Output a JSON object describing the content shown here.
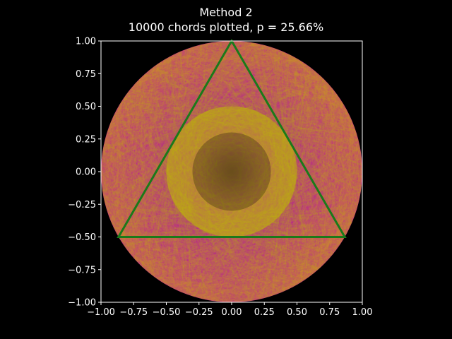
{
  "chart_data": {
    "type": "scatter",
    "title_line1": "Method 2",
    "title_line2": "10000 chords plotted, p = 25.66%",
    "n_chords": 10000,
    "p_percent": 25.66,
    "xlim": [
      -1.0,
      1.0
    ],
    "ylim": [
      -1.0,
      1.0
    ],
    "xticks": [
      -1.0,
      -0.75,
      -0.5,
      -0.25,
      0.0,
      0.25,
      0.5,
      0.75,
      1.0
    ],
    "yticks": [
      -1.0,
      -0.75,
      -0.5,
      -0.25,
      0.0,
      0.25,
      0.5,
      0.75,
      1.0
    ],
    "xtick_labels": [
      "−1.00",
      "−0.75",
      "−0.50",
      "−0.25",
      "0.00",
      "0.25",
      "0.50",
      "0.75",
      "1.00"
    ],
    "ytick_labels": [
      "−1.00",
      "−0.75",
      "−0.50",
      "−0.25",
      "0.00",
      "0.25",
      "0.50",
      "0.75",
      "1.00"
    ],
    "circle": {
      "center": [
        0.0,
        0.0
      ],
      "radius": 1.0
    },
    "inner_circle_radius": 0.5,
    "triangle": [
      [
        0.0,
        1.0
      ],
      [
        -0.866,
        -0.5
      ],
      [
        0.866,
        -0.5
      ]
    ],
    "long_chord_color": "#bfbf00",
    "short_chord_color": "#bf00bf",
    "triangle_color": "#1a7a1a",
    "background_color": "#000000",
    "axes_color": "#ffffff"
  }
}
